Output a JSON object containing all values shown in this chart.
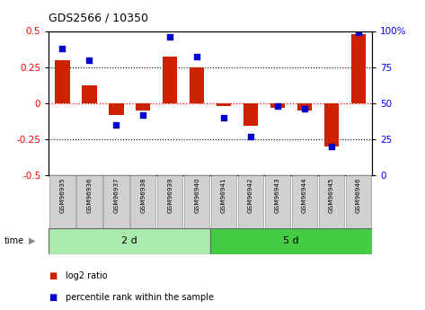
{
  "title": "GDS2566 / 10350",
  "samples": [
    "GSM96935",
    "GSM96936",
    "GSM96937",
    "GSM96938",
    "GSM96939",
    "GSM96940",
    "GSM96941",
    "GSM96942",
    "GSM96943",
    "GSM96944",
    "GSM96945",
    "GSM96946"
  ],
  "log2_ratio": [
    0.3,
    0.12,
    -0.08,
    -0.05,
    0.32,
    0.25,
    -0.02,
    -0.16,
    -0.03,
    -0.05,
    -0.3,
    0.48
  ],
  "percentile_rank": [
    88,
    80,
    35,
    42,
    96,
    82,
    40,
    27,
    48,
    46,
    20,
    99
  ],
  "bar_color": "#cc2200",
  "dot_color": "#0000cc",
  "ylim_left": [
    -0.5,
    0.5
  ],
  "ylim_right": [
    0,
    100
  ],
  "yticks_left": [
    -0.5,
    -0.25,
    0.0,
    0.25,
    0.5
  ],
  "yticks_right": [
    0,
    25,
    50,
    75,
    100
  ],
  "ytick_labels_left": [
    "-0.5",
    "-0.25",
    "0",
    "0.25",
    "0.5"
  ],
  "ytick_labels_right": [
    "0",
    "25",
    "50",
    "75",
    "100%"
  ],
  "hlines_dotted": [
    0.25,
    -0.25
  ],
  "hline0_color": "red",
  "group1_label": "2 d",
  "group2_label": "5 d",
  "group1_count": 6,
  "time_label": "time",
  "legend_items": [
    {
      "label": "log2 ratio",
      "color": "#cc2200"
    },
    {
      "label": "percentile rank within the sample",
      "color": "#0000cc"
    }
  ],
  "group_color1": "#aaeaaa",
  "group_color2": "#44cc44",
  "sample_box_color": "#d0d0d0",
  "sample_box_edge": "#999999",
  "background_color": "#ffffff"
}
